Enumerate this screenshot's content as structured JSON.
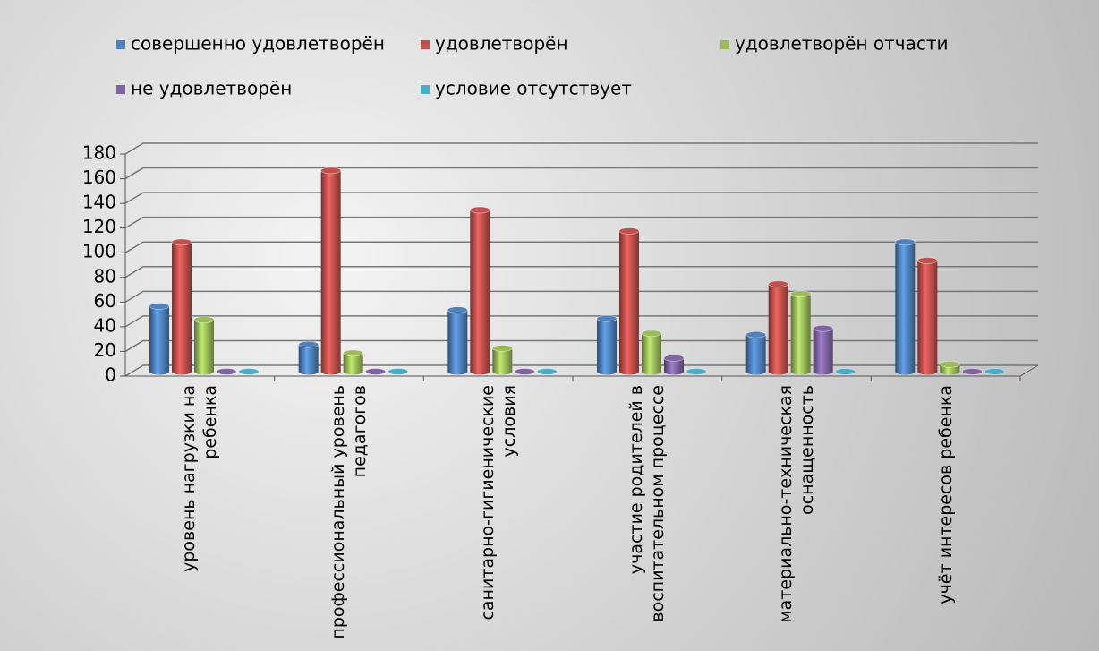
{
  "chart_data": {
    "type": "bar3d",
    "categories": [
      "уровень нагрузки на ребенка",
      "профессиональный уровень педагогов",
      "санитарно-гигиенические условия",
      "участие родителей в воспитательном процессе",
      "материально-техническая оснащенность",
      "учёт интересов ребенка"
    ],
    "series": [
      {
        "name": "совершенно удовлетворён",
        "color": "#4f81bd",
        "values": [
          53,
          22,
          50,
          43,
          30,
          105
        ]
      },
      {
        "name": "удовлетворён",
        "color": "#c0504d",
        "values": [
          105,
          163,
          131,
          114,
          71,
          90
        ]
      },
      {
        "name": "удовлетворён отчасти",
        "color": "#9bbb59",
        "values": [
          42,
          15,
          19,
          31,
          63,
          6
        ]
      },
      {
        "name": "не удовлетворён",
        "color": "#8064a2",
        "values": [
          0,
          0,
          0,
          11,
          35,
          0
        ]
      },
      {
        "name": "условие отсутствует",
        "color": "#4bacc6",
        "values": [
          0,
          0,
          0,
          0,
          0,
          0
        ]
      }
    ],
    "ylim": [
      0,
      180
    ],
    "yticks": [
      0,
      20,
      40,
      60,
      80,
      100,
      120,
      140,
      160,
      180
    ],
    "grid": true
  }
}
